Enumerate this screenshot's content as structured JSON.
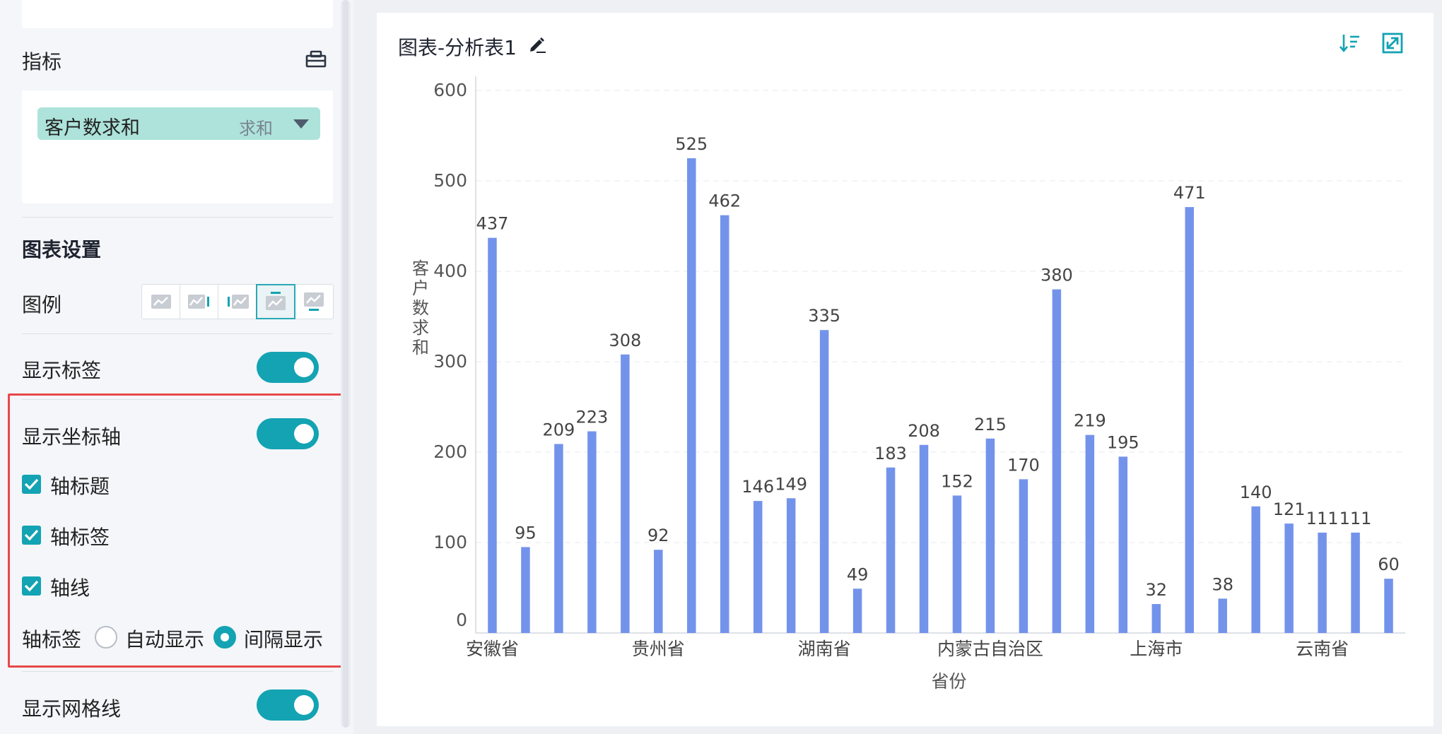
{
  "left_panel": {
    "metric": {
      "header": "指标",
      "field": {
        "name": "客户数求和",
        "aggregation": "求和"
      }
    },
    "chart_settings": {
      "title": "图表设置",
      "legend_label": "图例",
      "legend_options": [
        "none",
        "right",
        "left",
        "top",
        "bottom"
      ],
      "legend_selected": "top",
      "show_labels": {
        "label": "显示标签",
        "on": true
      },
      "show_axis": {
        "label": "显示坐标轴",
        "on": true
      },
      "axis_title": {
        "label": "轴标题",
        "checked": true
      },
      "axis_labels": {
        "label": "轴标签",
        "checked": true
      },
      "axis_line": {
        "label": "轴线",
        "checked": true
      },
      "axis_label_mode": {
        "label": "轴标签",
        "options": [
          "自动显示",
          "间隔显示"
        ],
        "selected": "间隔显示"
      },
      "show_grid": {
        "label": "显示网格线",
        "on": true
      }
    }
  },
  "chart_panel": {
    "title": "图表-分析表1",
    "icons": [
      "edit-icon",
      "sort-icon",
      "expand-icon"
    ]
  },
  "colors": {
    "accent": "#13a3b3",
    "bar": "#7393eb",
    "highlight": "#e8474b",
    "pill": "#ade3da"
  },
  "chart_data": {
    "type": "bar",
    "xlabel": "省份",
    "ylabel": "客户数求和",
    "ylim": [
      0,
      600
    ],
    "yticks": [
      0,
      100,
      200,
      300,
      400,
      500,
      600
    ],
    "grid": true,
    "shown_x_labels": [
      {
        "index": 0,
        "text": "安徽省"
      },
      {
        "index": 5,
        "text": "贵州省"
      },
      {
        "index": 10,
        "text": "湖南省"
      },
      {
        "index": 15,
        "text": "内蒙古自治区"
      },
      {
        "index": 20,
        "text": "上海市"
      },
      {
        "index": 25,
        "text": "云南省"
      }
    ],
    "values": [
      437,
      95,
      209,
      223,
      308,
      92,
      525,
      462,
      146,
      149,
      335,
      49,
      183,
      208,
      152,
      215,
      170,
      380,
      219,
      195,
      32,
      471,
      38,
      140,
      121,
      111,
      111,
      60
    ]
  }
}
